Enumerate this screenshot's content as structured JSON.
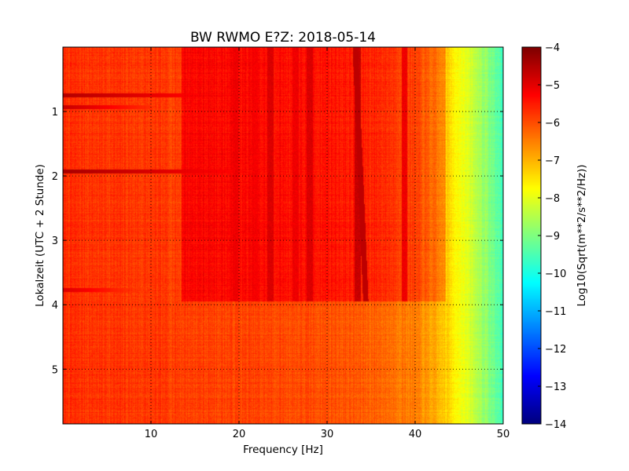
{
  "chart_data": {
    "type": "heatmap",
    "title": "BW RWMO E?Z: 2018-05-14",
    "xlabel": "Frequency [Hz]",
    "ylabel": "Lokalzeit (UTC + 2 Stunde)",
    "xlim": [
      0,
      50
    ],
    "ylim": [
      5.85,
      0
    ],
    "y_inverted": true,
    "xticks": [
      10,
      20,
      30,
      40,
      50
    ],
    "yticks": [
      1,
      2,
      3,
      4,
      5
    ],
    "grid": true,
    "colorbar": {
      "label": "Log10(Sqrt(m**2/s**2/Hz))",
      "colormap": "jet",
      "range": [
        -14,
        -4
      ],
      "ticks": [
        -4,
        -5,
        -6,
        -7,
        -8,
        -9,
        -10,
        -11,
        -12,
        -13,
        -14
      ]
    },
    "baseline_level_by_frequency": [
      {
        "f": 0,
        "level": -5.7
      },
      {
        "f": 10,
        "level": -5.8
      },
      {
        "f": 20,
        "level": -5.9
      },
      {
        "f": 30,
        "level": -6.0
      },
      {
        "f": 36,
        "level": -6.2
      },
      {
        "f": 40,
        "level": -6.5
      },
      {
        "f": 42,
        "level": -6.9
      },
      {
        "f": 44,
        "level": -7.4
      },
      {
        "f": 46,
        "level": -8.1
      },
      {
        "f": 48,
        "level": -8.8
      },
      {
        "f": 50,
        "level": -9.6
      }
    ],
    "regime_change_time": 3.95,
    "high_noise_band": {
      "f_from": 13.5,
      "f_to": 43.5,
      "t_from": 0,
      "t_to": 3.95,
      "level_offset": 0.6
    },
    "strong_frequency_lines": [
      {
        "f": 19.6,
        "level": -5.1
      },
      {
        "f": 21.8,
        "level": -5.2
      },
      {
        "f": 23.6,
        "level": -4.9
      },
      {
        "f": 26.4,
        "level": -5.1
      },
      {
        "f": 28.0,
        "level": -4.9
      },
      {
        "f": 33.5,
        "level": -4.7
      },
      {
        "f": 38.8,
        "level": -5.1
      }
    ],
    "drifting_line": {
      "f_start": 33.2,
      "f_end": 34.4,
      "t_start": 0,
      "t_end": 3.95,
      "level": -4.6
    },
    "strong_time_lines": [
      {
        "t": 0.75,
        "f_from": 0,
        "f_to": 19,
        "level": -4.5
      },
      {
        "t": 0.93,
        "f_from": 0,
        "f_to": 10,
        "level": -4.7
      },
      {
        "t": 1.93,
        "f_from": 0,
        "f_to": 21,
        "level": -4.4
      },
      {
        "t": 3.77,
        "f_from": 0,
        "f_to": 9,
        "level": -4.9
      }
    ]
  }
}
